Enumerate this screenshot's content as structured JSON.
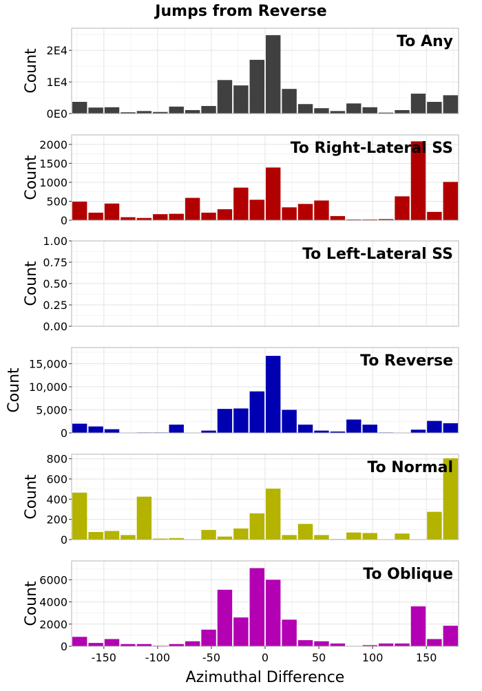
{
  "figure": {
    "title": "Jumps from Reverse",
    "xlabel": "Azimuthal Difference",
    "x_ticks": [
      "-150",
      "-100",
      "-50",
      "0",
      "50",
      "100",
      "150"
    ],
    "x_tick_values": [
      -150,
      -100,
      -50,
      0,
      50,
      100,
      150
    ],
    "xlim": [
      -180,
      180
    ],
    "grid": true
  },
  "chart_data": [
    {
      "type": "bar",
      "title": "To Any",
      "ylabel": "Count",
      "color": "#404040",
      "bin_width": 15,
      "x": [
        -172.5,
        -157.5,
        -142.5,
        -127.5,
        -112.5,
        -97.5,
        -82.5,
        -67.5,
        -52.5,
        -37.5,
        -22.5,
        -7.5,
        7.5,
        22.5,
        37.5,
        52.5,
        67.5,
        82.5,
        97.5,
        112.5,
        127.5,
        142.5,
        157.5,
        172.5
      ],
      "values": [
        3700,
        1900,
        2000,
        400,
        800,
        500,
        2200,
        1100,
        2400,
        10600,
        8900,
        17000,
        24800,
        7800,
        3000,
        1700,
        800,
        3200,
        2000,
        300,
        1100,
        6300,
        3700,
        5800
      ],
      "ylim": [
        0,
        27000
      ],
      "y_ticks": [
        0,
        10000,
        20000
      ],
      "y_tick_labels": [
        "0E0",
        "1E4",
        "2E4"
      ]
    },
    {
      "type": "bar",
      "title": "To Right-Lateral SS",
      "ylabel": "Count",
      "color": "#b20000",
      "bin_width": 15,
      "x": [
        -172.5,
        -157.5,
        -142.5,
        -127.5,
        -112.5,
        -97.5,
        -82.5,
        -67.5,
        -52.5,
        -37.5,
        -22.5,
        -7.5,
        7.5,
        22.5,
        37.5,
        52.5,
        67.5,
        82.5,
        97.5,
        112.5,
        127.5,
        142.5,
        157.5,
        172.5
      ],
      "values": [
        490,
        200,
        440,
        80,
        60,
        160,
        170,
        590,
        200,
        290,
        860,
        540,
        1390,
        340,
        430,
        520,
        110,
        20,
        20,
        30,
        630,
        2080,
        220,
        1010
      ],
      "ylim": [
        0,
        2250
      ],
      "y_ticks": [
        0,
        500,
        1000,
        1500,
        2000
      ],
      "y_tick_labels": [
        "0",
        "500",
        "1000",
        "1500",
        "2000"
      ]
    },
    {
      "type": "bar",
      "title": "To Left-Lateral SS",
      "ylabel": "Count",
      "color": "#008000",
      "bin_width": 15,
      "x": [],
      "values": [],
      "ylim": [
        0,
        1
      ],
      "y_ticks": [
        0,
        0.25,
        0.5,
        0.75,
        1
      ],
      "y_tick_labels": [
        "0.00",
        "0.25",
        "0.50",
        "0.75",
        "1.00"
      ]
    },
    {
      "type": "bar",
      "title": "To Reverse",
      "ylabel": "Count",
      "color": "#0000b2",
      "bin_width": 15,
      "x": [
        -172.5,
        -157.5,
        -142.5,
        -127.5,
        -112.5,
        -97.5,
        -82.5,
        -67.5,
        -52.5,
        -37.5,
        -22.5,
        -7.5,
        7.5,
        22.5,
        37.5,
        52.5,
        67.5,
        82.5,
        97.5,
        112.5,
        127.5,
        142.5,
        157.5,
        172.5
      ],
      "values": [
        2000,
        1400,
        800,
        50,
        100,
        100,
        1800,
        50,
        500,
        5200,
        5300,
        9000,
        16700,
        5000,
        1800,
        500,
        300,
        2900,
        1800,
        100,
        50,
        700,
        2600,
        2100
      ],
      "ylim": [
        0,
        18500
      ],
      "y_ticks": [
        0,
        5000,
        10000,
        15000
      ],
      "y_tick_labels": [
        "0",
        "5,000",
        "10,000",
        "15,000"
      ]
    },
    {
      "type": "bar",
      "title": "To Normal",
      "ylabel": "Count",
      "color": "#b3b300",
      "bin_width": 15,
      "x": [
        -172.5,
        -157.5,
        -142.5,
        -127.5,
        -112.5,
        -97.5,
        -82.5,
        -67.5,
        -52.5,
        -37.5,
        -22.5,
        -7.5,
        7.5,
        22.5,
        37.5,
        52.5,
        67.5,
        82.5,
        97.5,
        112.5,
        127.5,
        142.5,
        157.5,
        172.5
      ],
      "values": [
        465,
        75,
        85,
        45,
        425,
        10,
        15,
        0,
        95,
        30,
        110,
        260,
        505,
        45,
        155,
        45,
        5,
        70,
        65,
        0,
        60,
        0,
        275,
        805
      ],
      "ylim": [
        0,
        845
      ],
      "y_ticks": [
        0,
        200,
        400,
        600,
        800
      ],
      "y_tick_labels": [
        "0",
        "200",
        "400",
        "600",
        "800"
      ]
    },
    {
      "type": "bar",
      "title": "To Oblique",
      "ylabel": "Count",
      "color": "#b200b2",
      "bin_width": 15,
      "x": [
        -172.5,
        -157.5,
        -142.5,
        -127.5,
        -112.5,
        -97.5,
        -82.5,
        -67.5,
        -52.5,
        -37.5,
        -22.5,
        -7.5,
        7.5,
        22.5,
        37.5,
        52.5,
        67.5,
        82.5,
        97.5,
        112.5,
        127.5,
        142.5,
        157.5,
        172.5
      ],
      "values": [
        850,
        300,
        650,
        200,
        200,
        50,
        200,
        450,
        1500,
        5100,
        2600,
        7050,
        6000,
        2400,
        550,
        450,
        250,
        0,
        100,
        250,
        250,
        3600,
        650,
        1850
      ],
      "ylim": [
        0,
        7700
      ],
      "y_ticks": [
        0,
        2000,
        4000,
        6000
      ],
      "y_tick_labels": [
        "0",
        "2000",
        "4000",
        "6000"
      ]
    }
  ]
}
